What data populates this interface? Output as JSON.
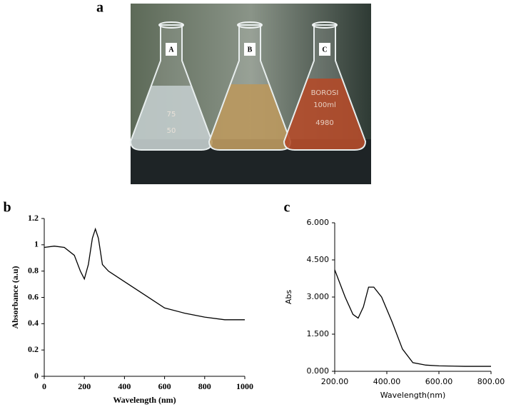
{
  "photo": {
    "panel_label": "a",
    "labels": [
      "A",
      "B",
      "C"
    ],
    "markings": [
      "75",
      "50",
      "BOROSI",
      "100ml",
      "4980"
    ]
  },
  "chart_data": [
    {
      "type": "line",
      "panel_label": "b",
      "xlabel": "Wavelength (nm)",
      "ylabel": "Absorbance (a.u)",
      "x": [
        0,
        50,
        100,
        150,
        180,
        200,
        220,
        240,
        255,
        270,
        290,
        320,
        400,
        500,
        600,
        700,
        800,
        900,
        1000
      ],
      "series": [
        {
          "color": "#000000",
          "values": [
            0.98,
            0.99,
            0.98,
            0.92,
            0.8,
            0.74,
            0.85,
            1.05,
            1.12,
            1.05,
            0.85,
            0.8,
            0.72,
            0.62,
            0.52,
            0.48,
            0.45,
            0.43,
            0.43
          ]
        }
      ],
      "xlim": [
        0,
        1000
      ],
      "xticks": [
        0,
        200,
        400,
        600,
        800,
        1000
      ],
      "ylim": [
        0,
        1.2
      ],
      "yticks": [
        0,
        0.2,
        0.4,
        0.6,
        0.8,
        1,
        1.2
      ]
    },
    {
      "type": "line",
      "panel_label": "c",
      "xlabel": "Wavelength(nm)",
      "ylabel": "Abs",
      "x": [
        200,
        240,
        270,
        290,
        310,
        330,
        350,
        380,
        420,
        460,
        500,
        550,
        600,
        700,
        800
      ],
      "series": [
        {
          "color": "#000000",
          "values": [
            4.1,
            3.0,
            2.3,
            2.15,
            2.6,
            3.4,
            3.4,
            3.0,
            2.0,
            0.9,
            0.35,
            0.25,
            0.22,
            0.2,
            0.2
          ]
        }
      ],
      "xlim": [
        200,
        800
      ],
      "xticks": [
        {
          "value": 200,
          "label": "200.00"
        },
        {
          "value": 400,
          "label": "400.00"
        },
        {
          "value": 600,
          "label": "600.00"
        },
        {
          "value": 800,
          "label": "800.00"
        }
      ],
      "ylim": [
        0,
        6
      ],
      "yticks": [
        {
          "value": 0,
          "label": "0.000"
        },
        {
          "value": 1.5,
          "label": "1.500"
        },
        {
          "value": 3,
          "label": "3.000"
        },
        {
          "value": 4.5,
          "label": "4.500"
        },
        {
          "value": 6,
          "label": "6.000"
        }
      ]
    }
  ]
}
